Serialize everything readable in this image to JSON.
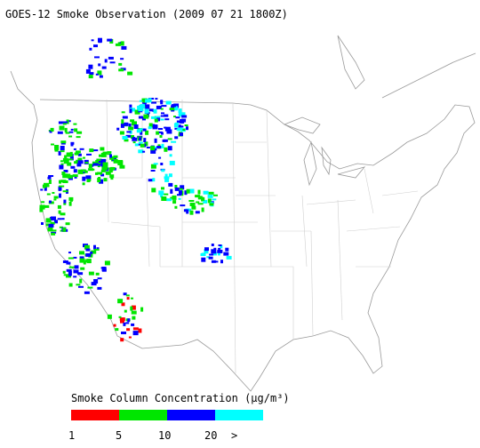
{
  "title": "GOES-12 Smoke Observation (2009 07 21  1800Z)",
  "legend": {
    "title": "Smoke Column Concentration (μg/m³)",
    "labels": [
      "1",
      "5",
      "10",
      "20",
      ">"
    ],
    "colors": [
      "#ff0000",
      "#00e600",
      "#0000ff",
      "#00ffff"
    ]
  }
}
